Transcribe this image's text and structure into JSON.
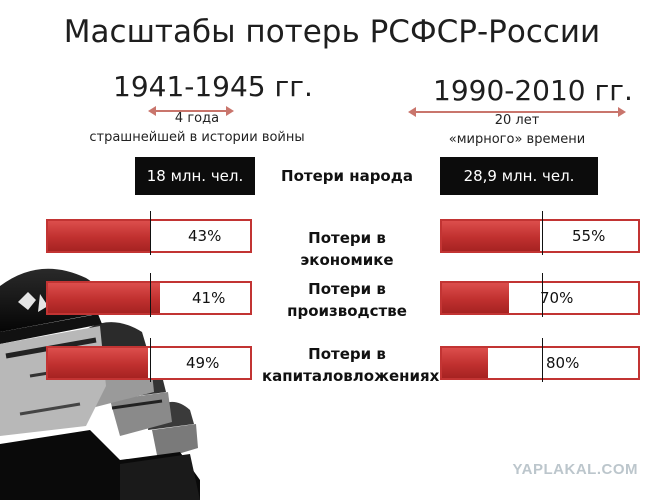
{
  "title": "Масштабы потерь РСФСР-России",
  "periods": [
    {
      "label": "1941-1945 гг.",
      "sub1": "4 года",
      "sub2": "страшнейшей в истории войны"
    },
    {
      "label": "1990-2010 гг.",
      "sub1": "20 лет",
      "sub2": "«мирного» времени"
    }
  ],
  "people": {
    "label": "Потери народа",
    "left": "18 млн. чел.",
    "right": "28,9 млн. чел."
  },
  "chart_data": {
    "type": "bar",
    "categories": [
      "Потери в экономике",
      "Потери в производстве",
      "Потери в капиталовложениях"
    ],
    "category_lines": [
      [
        "Потери в экономике"
      ],
      [
        "Потери в",
        "производстве"
      ],
      [
        "Потери в",
        "капиталовложениях"
      ]
    ],
    "series": [
      {
        "values": [
          43,
          41,
          49
        ],
        "labels": [
          "43%",
          "41%",
          "49%"
        ]
      },
      {
        "values": [
          55,
          70,
          80
        ],
        "labels": [
          "55%",
          "70%",
          "80%"
        ]
      }
    ]
  },
  "watermark": "YAPLAKAL.COM",
  "colors": {
    "bar_fill": "#c23433",
    "bar_border": "#c23433",
    "box": "#0c0c0c"
  }
}
